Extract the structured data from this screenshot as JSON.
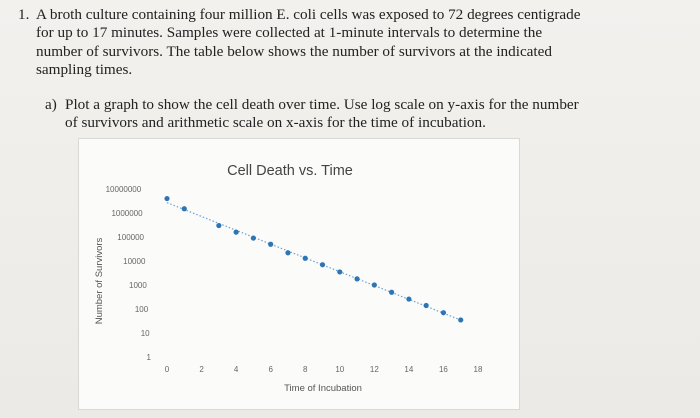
{
  "problem": {
    "number": "1.",
    "lines": [
      "A broth culture containing four million E. coli cells was exposed to 72 degrees centigrade",
      "for up to 17 minutes. Samples were collected at 1-minute intervals to determine the",
      "number of survivors. The table below shows the number of survivors at the indicated",
      "sampling times."
    ],
    "part_a": {
      "label": "a)",
      "lines": [
        "Plot a graph to show the cell death over time. Use log scale on y-axis for the number",
        "of survivors and arithmetic scale on x-axis for the time of incubation."
      ]
    }
  },
  "chart_data": {
    "type": "scatter",
    "title": "Cell Death vs. Time",
    "xlabel": "Time of Incubation",
    "ylabel": "Number of Survivors",
    "yscale": "log",
    "xlim": [
      0,
      18
    ],
    "ylim": [
      1,
      10000000
    ],
    "x_ticks": [
      "0",
      "2",
      "4",
      "6",
      "8",
      "10",
      "12",
      "14",
      "16",
      "18"
    ],
    "y_ticks": [
      "1",
      "10",
      "100",
      "1000",
      "10000",
      "100000",
      "1000000",
      "10000000"
    ],
    "trendline": "dotted linear trend through the points",
    "grid": false,
    "legend": "none",
    "marker_color": "#2e75b6",
    "trend_color": "#6d9fd3",
    "series": [
      {
        "x": [
          0,
          1,
          3,
          4,
          5,
          6,
          7,
          8,
          9,
          10,
          11,
          12,
          13,
          14,
          15,
          16,
          17
        ],
        "y": [
          4000000,
          1500000,
          300000,
          160000,
          90000,
          50000,
          22000,
          13000,
          7000,
          3500,
          1800,
          1000,
          500,
          260,
          140,
          70,
          35
        ]
      }
    ]
  }
}
